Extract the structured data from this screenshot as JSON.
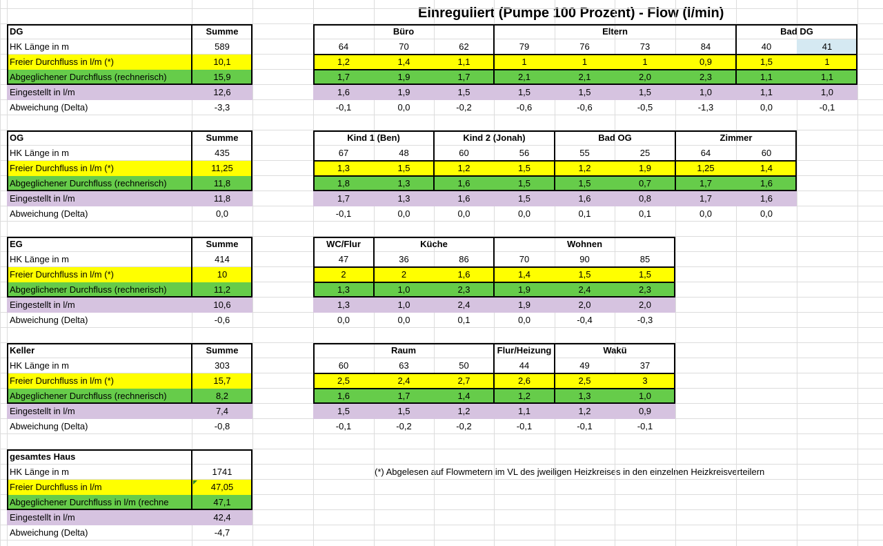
{
  "title": "Einreguliert (Pumpe 100 Prozent) - Flow (l/min)",
  "footnote": "(*) Abgelesen auf Flowmetern im VL des jweiligen Heizkreises in den einzelnen Heizkreisverteilern",
  "sections": [
    {
      "floor": "DG",
      "sum_label": "Summe",
      "rows": [
        {
          "label": "HK Länge in m",
          "sum": "589",
          "values": [
            "64",
            "70",
            "62",
            "79",
            "76",
            "73",
            "84",
            "40",
            "41"
          ]
        },
        {
          "label": "Freier Durchfluss in l/m (*)",
          "sum": "10,1",
          "values": [
            "1,2",
            "1,4",
            "1,1",
            "1",
            "1",
            "1",
            "0,9",
            "1,5",
            "1"
          ]
        },
        {
          "label": "Abgeglichener Durchfluss (rechnerisch)",
          "sum": "15,9",
          "values": [
            "1,7",
            "1,9",
            "1,7",
            "2,1",
            "2,1",
            "2,0",
            "2,3",
            "1,1",
            "1,1"
          ]
        },
        {
          "label": "Eingestellt in l/m",
          "sum": "12,6",
          "values": [
            "1,6",
            "1,9",
            "1,5",
            "1,5",
            "1,5",
            "1,5",
            "1,0",
            "1,1",
            "1,0"
          ]
        },
        {
          "label": "Abweichung (Delta)",
          "sum": "-3,3",
          "values": [
            "-0,1",
            "0,0",
            "-0,2",
            "-0,6",
            "-0,6",
            "-0,5",
            "-1,3",
            "0,0",
            "-0,1"
          ]
        }
      ],
      "rooms": [
        {
          "name": "Büro",
          "span": 3
        },
        {
          "name": "Eltern",
          "span": 4
        },
        {
          "name": "Bad DG",
          "span": 2
        }
      ]
    },
    {
      "floor": "OG",
      "sum_label": "Summe",
      "rows": [
        {
          "label": "HK Länge in m",
          "sum": "435",
          "values": [
            "67",
            "48",
            "60",
            "56",
            "55",
            "25",
            "64",
            "60"
          ]
        },
        {
          "label": "Freier Durchfluss in l/m (*)",
          "sum": "11,25",
          "values": [
            "1,3",
            "1,5",
            "1,2",
            "1,5",
            "1,2",
            "1,9",
            "1,25",
            "1,4"
          ]
        },
        {
          "label": "Abgeglichener Durchfluss (rechnerisch)",
          "sum": "11,8",
          "values": [
            "1,8",
            "1,3",
            "1,6",
            "1,5",
            "1,5",
            "0,7",
            "1,7",
            "1,6"
          ]
        },
        {
          "label": "Eingestellt in l/m",
          "sum": "11,8",
          "values": [
            "1,7",
            "1,3",
            "1,6",
            "1,5",
            "1,6",
            "0,8",
            "1,7",
            "1,6"
          ]
        },
        {
          "label": "Abweichung (Delta)",
          "sum": "0,0",
          "values": [
            "-0,1",
            "0,0",
            "0,0",
            "0,0",
            "0,1",
            "0,1",
            "0,0",
            "0,0"
          ]
        }
      ],
      "rooms": [
        {
          "name": "Kind 1 (Ben)",
          "span": 2
        },
        {
          "name": "Kind 2 (Jonah)",
          "span": 2
        },
        {
          "name": "Bad OG",
          "span": 2
        },
        {
          "name": "Zimmer",
          "span": 2
        }
      ]
    },
    {
      "floor": "EG",
      "sum_label": "Summe",
      "rows": [
        {
          "label": "HK Länge in m",
          "sum": "414",
          "values": [
            "47",
            "36",
            "86",
            "70",
            "90",
            "85"
          ]
        },
        {
          "label": "Freier Durchfluss in l/m (*)",
          "sum": "10",
          "values": [
            "2",
            "2",
            "1,6",
            "1,4",
            "1,5",
            "1,5"
          ]
        },
        {
          "label": "Abgeglichener Durchfluss (rechnerisch)",
          "sum": "11,2",
          "values": [
            "1,3",
            "1,0",
            "2,3",
            "1,9",
            "2,4",
            "2,3"
          ]
        },
        {
          "label": "Eingestellt in l/m",
          "sum": "10,6",
          "values": [
            "1,3",
            "1,0",
            "2,4",
            "1,9",
            "2,0",
            "2,0"
          ]
        },
        {
          "label": "Abweichung (Delta)",
          "sum": "-0,6",
          "values": [
            "0,0",
            "0,0",
            "0,1",
            "0,0",
            "-0,4",
            "-0,3"
          ]
        }
      ],
      "rooms": [
        {
          "name": "WC/Flur",
          "span": 1
        },
        {
          "name": "Küche",
          "span": 2
        },
        {
          "name": "Wohnen",
          "span": 3
        }
      ]
    },
    {
      "floor": "Keller",
      "sum_label": "Summe",
      "rows": [
        {
          "label": "HK Länge in m",
          "sum": "303",
          "values": [
            "60",
            "63",
            "50",
            "44",
            "49",
            "37"
          ]
        },
        {
          "label": "Freier Durchfluss in l/m (*)",
          "sum": "15,7",
          "values": [
            "2,5",
            "2,4",
            "2,7",
            "2,6",
            "2,5",
            "3"
          ]
        },
        {
          "label": "Abgeglichener Durchfluss (rechnerisch)",
          "sum": "8,2",
          "values": [
            "1,6",
            "1,7",
            "1,4",
            "1,2",
            "1,3",
            "1,0"
          ]
        },
        {
          "label": "Eingestellt in l/m",
          "sum": "7,4",
          "values": [
            "1,5",
            "1,5",
            "1,2",
            "1,1",
            "1,2",
            "0,9"
          ]
        },
        {
          "label": "Abweichung (Delta)",
          "sum": "-0,8",
          "values": [
            "-0,1",
            "-0,2",
            "-0,2",
            "-0,1",
            "-0,1",
            "-0,1"
          ]
        }
      ],
      "rooms": [
        {
          "name": "Raum",
          "span": 3
        },
        {
          "name": "Flur/Heizung",
          "span": 1
        },
        {
          "name": "Wakü",
          "span": 2
        }
      ]
    }
  ],
  "total": {
    "label": "gesamtes Haus",
    "rows": [
      {
        "label": "HK Länge in m",
        "sum": "1741"
      },
      {
        "label": "Freier Durchfluss in l/m",
        "sum": "47,05"
      },
      {
        "label": "Abgeglichener Durchfluss in l/m (rechne",
        "sum": "47,1"
      },
      {
        "label": "Eingestellt in l/m",
        "sum": "42,4"
      },
      {
        "label": "Abweichung (Delta)",
        "sum": "-4,7"
      }
    ]
  },
  "colors": {
    "free_flow": "#ffff00",
    "balanced_flow": "#66cc4a",
    "set_flow": "#d6c3e0",
    "selected_cell": "#d5e9f2",
    "gridline": "#dcdcdc"
  }
}
